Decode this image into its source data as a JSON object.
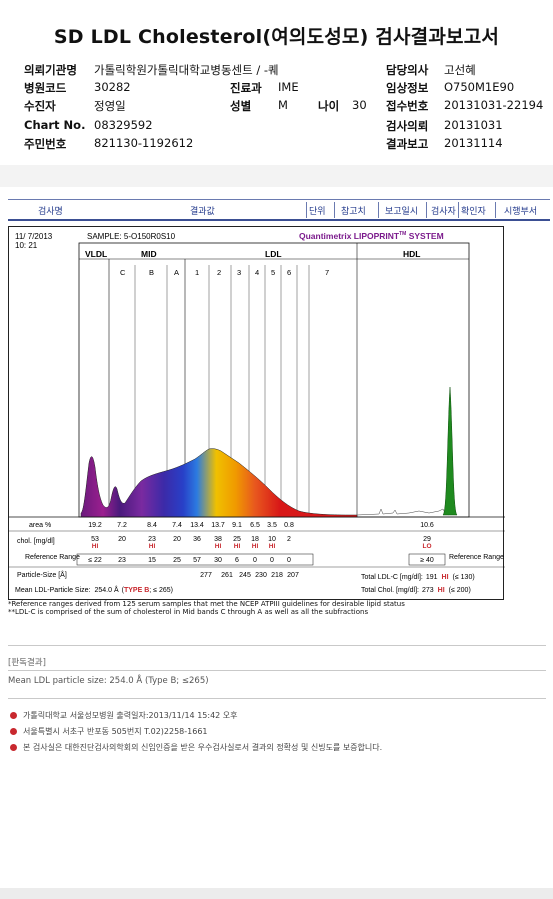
{
  "title": "SD LDL Cholesterol(여의도성모) 검사결과보고서",
  "patient_info": {
    "institution_label": "의뢰기관명",
    "institution_value": "가톨릭학원가톨릭대학교병동센트 / -퀘",
    "hospital_code_label": "병원코드",
    "hospital_code_value": "30282",
    "department_label": "진료과",
    "department_value": "IME",
    "receiver_label": "수진자",
    "receiver_value": "정영일",
    "sex_label": "성별",
    "sex_value": "M",
    "age_label": "나이",
    "age_value": "30",
    "chart_label": "Chart No.",
    "chart_value": "08329592",
    "rrn_label": "주민번호",
    "rrn_value": "821130-1192612",
    "doctor_label": "담당의사",
    "doctor_value": "고선혜",
    "clinical_label": "임상정보",
    "clinical_value": "O750M1E90",
    "receipt_label": "접수번호",
    "receipt_value": "20131031-22194",
    "request_label": "검사의뢰",
    "request_value": "20131031",
    "result_label": "결과보고",
    "result_value": "20131114"
  },
  "table_header": [
    "검사명",
    "결과값",
    "단위",
    "참고치",
    "보고일시",
    "검사자",
    "확인자",
    "시행부서"
  ],
  "report": {
    "date": "11/ 7/2013",
    "time": "10: 21",
    "sample": "SAMPLE:   5-O150R0S10",
    "brand": "Quantimetrix LIPOPRINT",
    "brand_tm": "TM",
    "brand_suffix": " SYSTEM",
    "groups": [
      "VLDL",
      "MID",
      "LDL",
      "HDL"
    ],
    "bands": [
      "C",
      "B",
      "A",
      "1",
      "2",
      "3",
      "4",
      "5",
      "6",
      "7"
    ],
    "area_label": "area %",
    "area_values": [
      "19.2",
      "7.2",
      "8.4",
      "7.4",
      "13.4",
      "13.7",
      "9.1",
      "6.5",
      "3.5",
      "0.8",
      "10.6"
    ],
    "chol_label": "chol. [mg/dl]",
    "chol_values": [
      "53",
      "20",
      "23",
      "20",
      "36",
      "38",
      "25",
      "18",
      "10",
      "2",
      "29"
    ],
    "flags": [
      "HI",
      "",
      "HI",
      "",
      "",
      "HI",
      "HI",
      "HI",
      "HI",
      "",
      "LO"
    ],
    "ref_label": "Reference Range",
    "ref_values": [
      "≤ 22",
      "23",
      "15",
      "25",
      "57",
      "30",
      "6",
      "0",
      "0",
      "0",
      "≥ 40"
    ],
    "ref_label_right": "Reference Range",
    "particle_label": "Particle-Size [Å]",
    "particle_values": [
      "277",
      "261",
      "245",
      "230",
      "218",
      "207"
    ],
    "mean_label": "Mean LDL-Particle Size:",
    "mean_value": "254.0 Å",
    "mean_type": "TYPE B",
    "mean_limit": "; ≤ 265)",
    "total_ldl_label": "Total LDL-C [mg/dl]:",
    "total_ldl_value": "191",
    "total_ldl_flag": "HI",
    "total_ldl_ref": "(≤ 130)",
    "total_chol_label": "Total Chol. [mg/dl]:",
    "total_chol_value": "273",
    "total_chol_flag": "HI",
    "total_chol_ref": "(≤ 200)"
  },
  "notes": [
    "*Reference ranges derived from 125 serum samples that met the NCEP ATPIII guidelines for desirable lipid status",
    "**LDL-C is comprised of the sum of cholesterol in Mid bands C through A as well as all the subfractions"
  ],
  "judgement_label": "[판독결과]",
  "judgement_text": "Mean LDL particle size: 254.0 Å (Type B; ≤265)",
  "footer": [
    "가톨릭대학교 서울성모병원        출력일자:2013/11/14 15:42 오후",
    "서울특별시 서초구 반포동 505번지 T.02)2258-1661",
    "본 검사실은 대한진단검사의학회의 신임인증을 받은 우수검사실로서 결과의 정확성 및 신빙도를 보증합니다."
  ],
  "colors": {
    "accent": "#c8282e",
    "header_blue": "#233a8c",
    "brand_purple": "#7b1a8c"
  }
}
